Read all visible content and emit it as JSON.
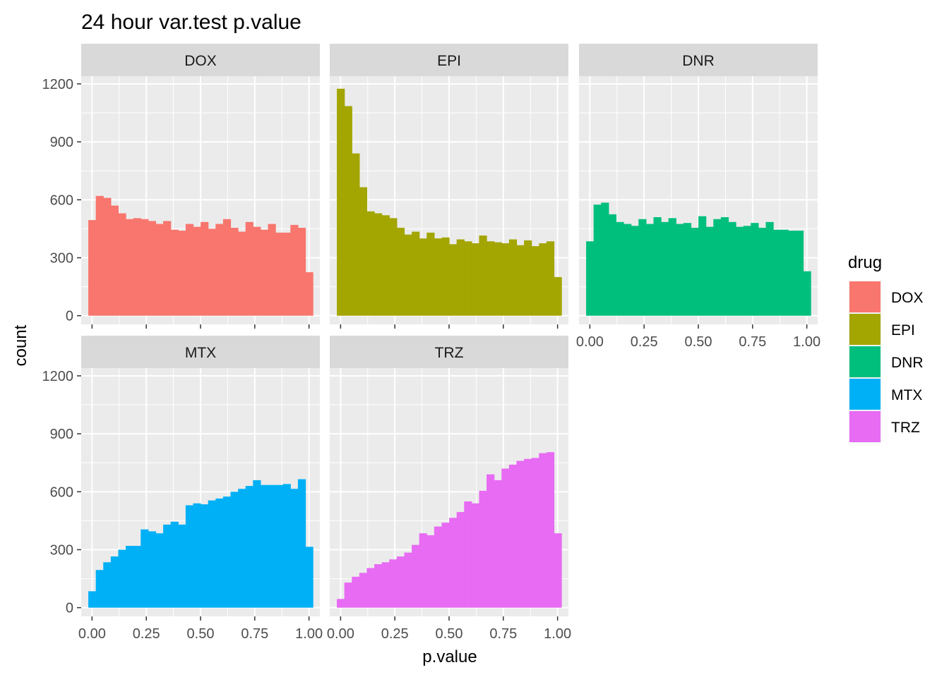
{
  "chart_data": {
    "type": "histogram",
    "title": "24 hour var.test p.value",
    "xlabel": "p.value",
    "ylabel": "count",
    "xlim": [
      -0.05,
      1.05
    ],
    "ylim": [
      -45,
      1240
    ],
    "x_ticks": [
      "0.00",
      "0.25",
      "0.50",
      "0.75",
      "1.00"
    ],
    "x_tick_values": [
      0,
      0.25,
      0.5,
      0.75,
      1
    ],
    "y_ticks": [
      "0",
      "300",
      "600",
      "900",
      "1200"
    ],
    "y_tick_values": [
      0,
      300,
      600,
      900,
      1200
    ],
    "bins": 30,
    "bin_width": 0.0345,
    "bin_start": -0.01724,
    "grid": true,
    "legend": {
      "title": "drug",
      "position": "right"
    },
    "series": [
      {
        "name": "DOX",
        "color": "#F8766D",
        "values": [
          495,
          620,
          610,
          570,
          530,
          500,
          505,
          500,
          490,
          475,
          490,
          445,
          440,
          475,
          460,
          485,
          450,
          475,
          500,
          455,
          435,
          485,
          460,
          445,
          475,
          430,
          430,
          470,
          455,
          225
        ]
      },
      {
        "name": "EPI",
        "color": "#A3A500",
        "values": [
          1175,
          1085,
          840,
          665,
          540,
          530,
          520,
          505,
          455,
          420,
          435,
          400,
          430,
          400,
          405,
          370,
          395,
          385,
          375,
          415,
          385,
          380,
          375,
          395,
          365,
          390,
          360,
          375,
          385,
          200
        ]
      },
      {
        "name": "DNR",
        "color": "#00BF7D",
        "values": [
          385,
          575,
          585,
          525,
          485,
          475,
          465,
          500,
          475,
          510,
          485,
          505,
          475,
          480,
          455,
          515,
          460,
          500,
          510,
          485,
          460,
          465,
          480,
          455,
          485,
          445,
          445,
          440,
          440,
          230
        ]
      },
      {
        "name": "MTX",
        "color": "#00B0F6",
        "values": [
          85,
          195,
          235,
          265,
          300,
          320,
          320,
          405,
          395,
          385,
          430,
          445,
          430,
          530,
          540,
          535,
          555,
          565,
          575,
          600,
          615,
          630,
          660,
          635,
          635,
          635,
          640,
          615,
          665,
          315
        ]
      },
      {
        "name": "TRZ",
        "color": "#E76BF3",
        "values": [
          45,
          130,
          160,
          180,
          205,
          225,
          235,
          250,
          265,
          285,
          325,
          385,
          375,
          420,
          440,
          465,
          495,
          550,
          540,
          605,
          690,
          660,
          720,
          740,
          760,
          770,
          775,
          800,
          805,
          385
        ]
      }
    ]
  }
}
